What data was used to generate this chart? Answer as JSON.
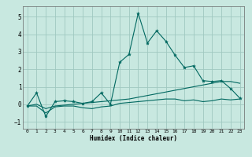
{
  "xlabel": "Humidex (Indice chaleur)",
  "xlim": [
    -0.5,
    23.5
  ],
  "ylim": [
    -1.4,
    5.6
  ],
  "xticks": [
    0,
    1,
    2,
    3,
    4,
    5,
    6,
    7,
    8,
    9,
    10,
    11,
    12,
    13,
    14,
    15,
    16,
    17,
    18,
    19,
    20,
    21,
    22,
    23
  ],
  "yticks": [
    -1,
    0,
    1,
    2,
    3,
    4,
    5
  ],
  "bg_color": "#c8e8e0",
  "grid_color": "#a0c8c0",
  "line_color": "#006860",
  "line1_x": [
    0,
    1,
    2,
    3,
    4,
    5,
    6,
    7,
    8,
    9,
    10,
    11,
    12,
    13,
    14,
    15,
    16,
    17,
    18,
    19,
    20,
    21,
    22,
    23
  ],
  "line1_y": [
    -0.1,
    0.65,
    -0.7,
    0.15,
    0.2,
    0.15,
    0.05,
    0.15,
    0.65,
    0.0,
    2.4,
    2.85,
    5.2,
    3.5,
    4.2,
    3.6,
    2.8,
    2.1,
    2.2,
    1.35,
    1.3,
    1.35,
    0.9,
    0.35
  ],
  "line2_x": [
    0,
    1,
    2,
    3,
    4,
    5,
    6,
    7,
    8,
    9,
    10,
    11,
    12,
    13,
    14,
    15,
    16,
    17,
    18,
    19,
    20,
    21,
    22,
    23
  ],
  "line2_y": [
    -0.1,
    0.0,
    -0.25,
    -0.1,
    -0.05,
    0.0,
    0.05,
    0.1,
    0.15,
    0.2,
    0.25,
    0.3,
    0.4,
    0.5,
    0.6,
    0.7,
    0.8,
    0.9,
    1.0,
    1.1,
    1.2,
    1.3,
    1.3,
    1.2
  ],
  "line3_x": [
    0,
    1,
    2,
    3,
    4,
    5,
    6,
    7,
    8,
    9,
    10,
    11,
    12,
    13,
    14,
    15,
    16,
    17,
    18,
    19,
    20,
    21,
    22,
    23
  ],
  "line3_y": [
    -0.1,
    -0.1,
    -0.5,
    -0.15,
    -0.1,
    -0.1,
    -0.2,
    -0.25,
    -0.15,
    -0.1,
    0.05,
    0.1,
    0.15,
    0.2,
    0.25,
    0.3,
    0.3,
    0.2,
    0.25,
    0.15,
    0.2,
    0.3,
    0.25,
    0.3
  ]
}
